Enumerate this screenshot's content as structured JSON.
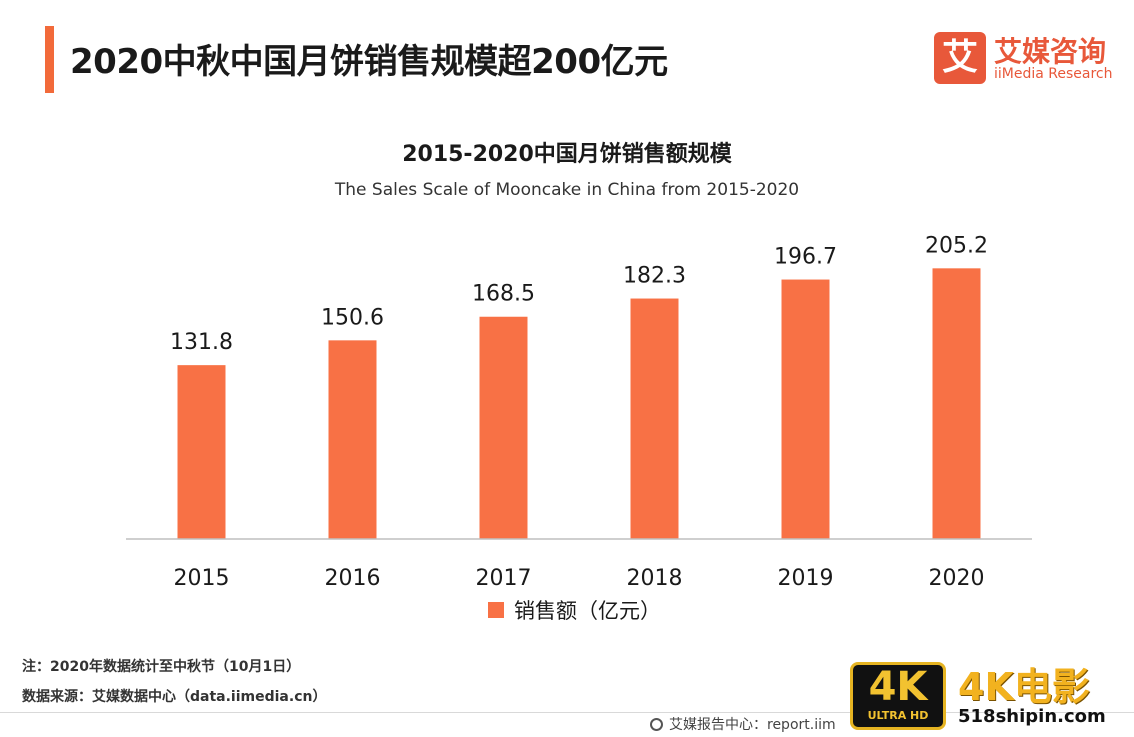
{
  "header": {
    "title": "2020中秋中国月饼销售规模超200亿元"
  },
  "logo": {
    "mark": "艾",
    "name_cn": "艾媒咨询",
    "name_en": "iiMedia Research"
  },
  "chart_data": {
    "type": "bar",
    "title": "2015-2020中国月饼销售额规模",
    "subtitle": "The  Sales Scale of Mooncake in China from 2015-2020",
    "categories": [
      "2015",
      "2016",
      "2017",
      "2018",
      "2019",
      "2020"
    ],
    "series": [
      {
        "name": "销售额（亿元）",
        "values": [
          131.8,
          150.6,
          168.5,
          182.3,
          196.7,
          205.2
        ]
      }
    ],
    "data_labels": [
      "131.8",
      "150.6",
      "168.5",
      "182.3",
      "196.7",
      "205.2"
    ],
    "xlabel": "",
    "ylabel": "",
    "ylim": [
      0,
      210
    ],
    "grid": false,
    "legend_position": "bottom",
    "bar_color": "#f87145"
  },
  "footer": {
    "note": "注：2020年数据统计至中秋节（10月1日）",
    "source": "数据来源：艾媒数据中心（data.iimedia.cn）",
    "report": "艾媒报告中心：report.iim"
  },
  "watermark": {
    "badge_big": "4K",
    "badge_small": "ULTRA HD",
    "text": "4K电影",
    "url": "518shipin.com"
  },
  "colors": {
    "accent": "#f26a3a",
    "bar": "#f87145",
    "brand": "#e8583a"
  }
}
